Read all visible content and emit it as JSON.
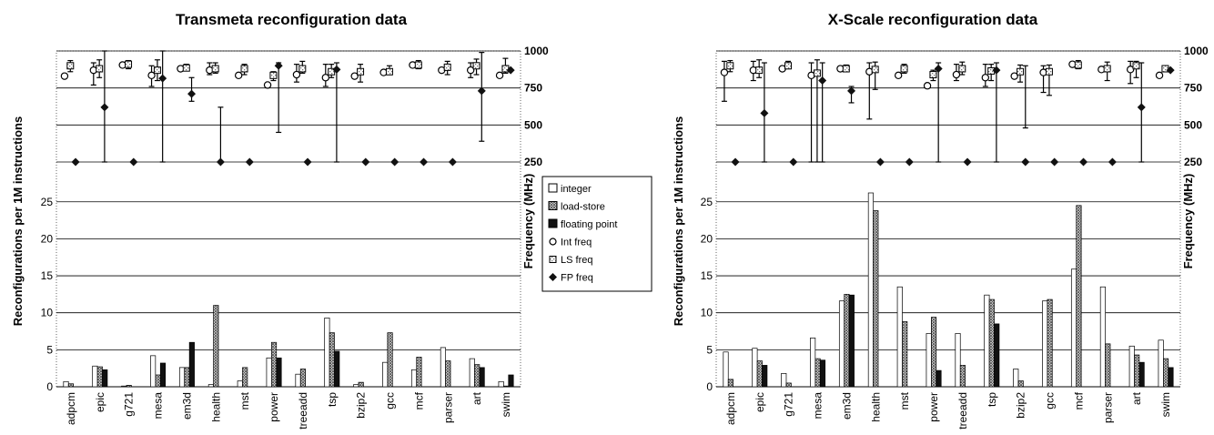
{
  "legend": {
    "items": [
      {
        "label": "integer",
        "icon": "white-box",
        "color": "#ffffff"
      },
      {
        "label": "load-store",
        "icon": "crosshatch-box",
        "color": "#999999"
      },
      {
        "label": "floating point",
        "icon": "black-box",
        "color": "#111111"
      },
      {
        "label": "Int freq",
        "icon": "open-circle",
        "color": "#ffffff"
      },
      {
        "label": "LS freq",
        "icon": "grey-square",
        "color": "#999999"
      },
      {
        "label": "FP freq",
        "icon": "black-diamond",
        "color": "#111111"
      }
    ]
  },
  "chart_data": [
    {
      "type": "bar",
      "title": "Transmeta reconfiguration data",
      "ylabel": "Reconfigurations per 1M instructions",
      "y2label": "Frequency (MHz)",
      "categories": [
        "adpcm",
        "epic",
        "g721",
        "mesa",
        "em3d",
        "health",
        "mst",
        "power",
        "treeadd",
        "tsp",
        "bzip2",
        "gcc",
        "mcf",
        "parser",
        "art",
        "swim"
      ],
      "ylim": [
        0,
        30
      ],
      "yticks": [
        "0",
        "5",
        "10",
        "15",
        "20",
        "25"
      ],
      "y2ticks": [
        "250",
        "500",
        "750",
        "1000"
      ],
      "y2lim": [
        250,
        1000
      ],
      "series": [
        {
          "name": "integer",
          "values": [
            0.7,
            2.8,
            0.1,
            4.2,
            2.6,
            0.3,
            0.8,
            3.9,
            1.7,
            9.3,
            0.3,
            3.3,
            2.3,
            5.3,
            3.8,
            0.7
          ]
        },
        {
          "name": "load-store",
          "values": [
            0.4,
            2.7,
            0.2,
            1.6,
            2.6,
            11.0,
            2.6,
            6.0,
            2.4,
            7.3,
            0.6,
            7.3,
            4.0,
            3.5,
            3.0,
            0.1
          ]
        },
        {
          "name": "floating point",
          "values": [
            0,
            2.3,
            0,
            3.2,
            6.0,
            0,
            0,
            3.9,
            0,
            4.8,
            0,
            0,
            0,
            0,
            2.6,
            1.6
          ]
        }
      ],
      "frequencies": [
        {
          "name": "Int freq",
          "values": [
            830,
            870,
            905,
            835,
            880,
            870,
            835,
            770,
            840,
            820,
            830,
            855,
            905,
            870,
            870,
            835
          ],
          "errors": [
            null,
            [
              770,
              920
            ],
            null,
            [
              760,
              900
            ],
            null,
            [
              840,
              920
            ],
            null,
            null,
            [
              790,
              910
            ],
            [
              760,
              910
            ],
            null,
            null,
            null,
            null,
            [
              820,
              920
            ],
            null
          ]
        },
        {
          "name": "LS freq",
          "values": [
            900,
            880,
            910,
            870,
            885,
            880,
            880,
            835,
            880,
            860,
            860,
            860,
            905,
            890,
            900,
            880
          ],
          "errors": [
            [
              860,
              935
            ],
            [
              820,
              940
            ],
            [
              880,
              935
            ],
            [
              800,
              940
            ],
            [
              870,
              910
            ],
            [
              850,
              920
            ],
            [
              840,
              910
            ],
            [
              800,
              860
            ],
            [
              850,
              930
            ],
            [
              820,
              910
            ],
            [
              790,
              910
            ],
            [
              840,
              900
            ],
            [
              880,
              935
            ],
            [
              840,
              930
            ],
            [
              840,
              945
            ],
            [
              850,
              950
            ]
          ]
        },
        {
          "name": "FP freq",
          "values": [
            250,
            620,
            250,
            815,
            710,
            250,
            250,
            900,
            250,
            875,
            250,
            250,
            250,
            250,
            730,
            870
          ],
          "errors": [
            null,
            [
              250,
              1000
            ],
            null,
            [
              250,
              1000
            ],
            [
              660,
              820
            ],
            [
              250,
              620
            ],
            null,
            [
              450,
              920
            ],
            null,
            [
              250,
              920
            ],
            null,
            null,
            null,
            null,
            [
              390,
              990
            ],
            null
          ]
        }
      ]
    },
    {
      "type": "bar",
      "title": "X-Scale reconfiguration data",
      "ylabel": "Reconfigurations per 1M instructions",
      "y2label": "Frequency (MHz)",
      "categories": [
        "adpcm",
        "epic",
        "g721",
        "mesa",
        "em3d",
        "health",
        "mst",
        "power",
        "treeadd",
        "tsp",
        "bzip2",
        "gcc",
        "mcf",
        "parser",
        "art",
        "swim"
      ],
      "ylim": [
        0,
        30
      ],
      "yticks": [
        "0",
        "5",
        "10",
        "15",
        "20",
        "25"
      ],
      "y2ticks": [
        "250",
        "500",
        "750",
        "1000"
      ],
      "y2lim": [
        250,
        1000
      ],
      "series": [
        {
          "name": "integer",
          "values": [
            4.7,
            5.2,
            1.8,
            6.6,
            11.6,
            26.2,
            13.5,
            7.2,
            7.2,
            12.4,
            2.4,
            11.6,
            15.9,
            13.5,
            5.5,
            6.3
          ]
        },
        {
          "name": "load-store",
          "values": [
            1.0,
            3.5,
            0.5,
            3.8,
            12.5,
            23.8,
            8.8,
            9.4,
            2.9,
            11.8,
            0.8,
            11.8,
            24.5,
            5.8,
            4.3,
            3.8
          ]
        },
        {
          "name": "floating point",
          "values": [
            0,
            2.9,
            0,
            3.6,
            12.4,
            0,
            0,
            2.2,
            0,
            8.5,
            0,
            0,
            0,
            0,
            3.3,
            2.6
          ]
        }
      ],
      "frequencies": [
        {
          "name": "Int freq",
          "values": [
            855,
            870,
            880,
            835,
            880,
            860,
            835,
            765,
            840,
            820,
            830,
            855,
            910,
            875,
            875,
            835
          ],
          "errors": [
            [
              660,
              930
            ],
            [
              800,
              930
            ],
            null,
            [
              250,
              920
            ],
            null,
            [
              540,
              920
            ],
            null,
            null,
            [
              800,
              910
            ],
            [
              760,
              910
            ],
            null,
            [
              720,
              900
            ],
            null,
            null,
            [
              780,
              930
            ],
            null
          ]
        },
        {
          "name": "LS freq",
          "values": [
            900,
            870,
            900,
            850,
            880,
            875,
            880,
            840,
            880,
            865,
            860,
            860,
            905,
            880,
            900,
            880
          ],
          "errors": [
            [
              860,
              935
            ],
            [
              820,
              940
            ],
            [
              880,
              930
            ],
            [
              250,
              940
            ],
            [
              860,
              905
            ],
            [
              740,
              925
            ],
            [
              850,
              910
            ],
            [
              800,
              870
            ],
            [
              840,
              925
            ],
            [
              800,
              910
            ],
            [
              790,
              905
            ],
            [
              700,
              905
            ],
            [
              880,
              935
            ],
            [
              800,
              925
            ],
            [
              820,
              930
            ],
            [
              860,
              900
            ]
          ]
        },
        {
          "name": "FP freq",
          "values": [
            250,
            580,
            250,
            800,
            730,
            250,
            250,
            880,
            250,
            870,
            250,
            250,
            250,
            250,
            620,
            870
          ],
          "errors": [
            null,
            [
              250,
              920
            ],
            null,
            [
              250,
              920
            ],
            [
              650,
              760
            ],
            null,
            null,
            [
              250,
              920
            ],
            null,
            [
              250,
              920
            ],
            [
              480,
              900
            ],
            null,
            null,
            null,
            [
              250,
              920
            ],
            null
          ]
        }
      ]
    }
  ]
}
